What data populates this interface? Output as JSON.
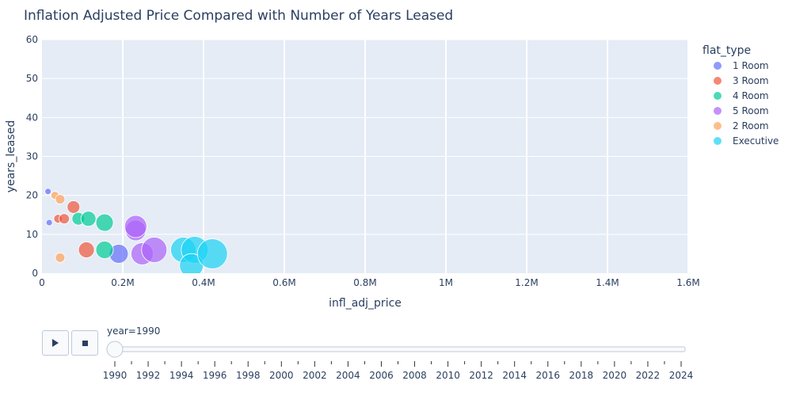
{
  "chart_data": {
    "type": "scatter",
    "title": "Inflation Adjusted Price Compared with Number of Years Leased",
    "xlabel": "infl_adj_price",
    "ylabel": "years_leased",
    "xlim": [
      0,
      1600000
    ],
    "ylim": [
      0,
      60
    ],
    "x_ticks": [
      0,
      200000,
      400000,
      600000,
      800000,
      1000000,
      1200000,
      1400000,
      1600000
    ],
    "x_tick_labels": [
      "0",
      "0.2M",
      "0.4M",
      "0.6M",
      "0.8M",
      "1M",
      "1.2M",
      "1.4M",
      "1.6M"
    ],
    "y_ticks": [
      0,
      10,
      20,
      30,
      40,
      50,
      60
    ],
    "y_tick_labels": [
      "0",
      "10",
      "20",
      "30",
      "40",
      "50",
      "60"
    ],
    "grid": true,
    "legend_title": "flat_type",
    "legend_position": "right",
    "series": [
      {
        "name": "1 Room",
        "color": "#636efa",
        "points": [
          {
            "x": 15000,
            "y": 21,
            "size": 8
          },
          {
            "x": 18000,
            "y": 13,
            "size": 8
          },
          {
            "x": 190000,
            "y": 5,
            "size": 24
          }
        ]
      },
      {
        "name": "3 Room",
        "color": "#ef553b",
        "points": [
          {
            "x": 40000,
            "y": 14,
            "size": 11
          },
          {
            "x": 55000,
            "y": 14,
            "size": 13
          },
          {
            "x": 78000,
            "y": 17,
            "size": 16
          },
          {
            "x": 110000,
            "y": 6,
            "size": 20
          }
        ]
      },
      {
        "name": "4 Room",
        "color": "#00cc96",
        "points": [
          {
            "x": 90000,
            "y": 14,
            "size": 16
          },
          {
            "x": 115000,
            "y": 14,
            "size": 19
          },
          {
            "x": 155000,
            "y": 13,
            "size": 22
          },
          {
            "x": 155000,
            "y": 6,
            "size": 22
          }
        ]
      },
      {
        "name": "5 Room",
        "color": "#ab63fa",
        "points": [
          {
            "x": 232000,
            "y": 11,
            "size": 26
          },
          {
            "x": 232000,
            "y": 12,
            "size": 28
          },
          {
            "x": 248000,
            "y": 5,
            "size": 28
          },
          {
            "x": 278000,
            "y": 6,
            "size": 32
          }
        ]
      },
      {
        "name": "2 Room",
        "color": "#ffa15a",
        "points": [
          {
            "x": 32000,
            "y": 20,
            "size": 10
          },
          {
            "x": 45000,
            "y": 19,
            "size": 12
          },
          {
            "x": 45000,
            "y": 4,
            "size": 12
          }
        ]
      },
      {
        "name": "Executive",
        "color": "#19d3f3",
        "points": [
          {
            "x": 350000,
            "y": 6,
            "size": 32
          },
          {
            "x": 378000,
            "y": 6,
            "size": 34
          },
          {
            "x": 370000,
            "y": 2,
            "size": 30
          },
          {
            "x": 422000,
            "y": 5,
            "size": 38
          }
        ]
      }
    ]
  },
  "slider": {
    "label": "year=1990",
    "current_year": 1990,
    "years_range": [
      1990,
      2024
    ],
    "tick_labels": [
      "1990",
      "1992",
      "1994",
      "1996",
      "1998",
      "2000",
      "2002",
      "2004",
      "2006",
      "2008",
      "2010",
      "2012",
      "2014",
      "2016",
      "2018",
      "2020",
      "2022",
      "2024"
    ]
  },
  "controls": {
    "play_icon": "play-icon",
    "stop_icon": "stop-icon"
  }
}
